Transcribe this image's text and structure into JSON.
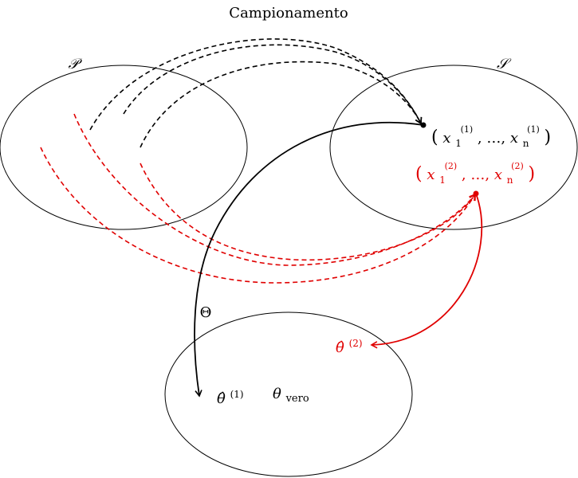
{
  "title": "Campionamento",
  "sets": {
    "population_label": "𝒫",
    "sample_space_label": "𝒮",
    "parameter_space_label": "Θ"
  },
  "samples": [
    {
      "id": "sample-1",
      "color": "#000000",
      "open_paren": "(",
      "first_var": "x",
      "first_sub": "1",
      "sup": "(1)",
      "ellipsis": ", …, ",
      "last_var": "x",
      "last_sub": "n",
      "close_paren": ")"
    },
    {
      "id": "sample-2",
      "color": "#e00000",
      "open_paren": "(",
      "first_var": "x",
      "first_sub": "1",
      "sup": "(2)",
      "ellipsis": ", …, ",
      "last_var": "x",
      "last_sub": "n",
      "close_paren": ")"
    }
  ],
  "estimates": {
    "theta_hat_1": {
      "base": "θ̂",
      "sup": "(1)",
      "color": "#000000"
    },
    "theta_hat_2": {
      "base": "θ̂",
      "sup": "(2)",
      "color": "#e00000"
    },
    "theta_true": {
      "base": "θ",
      "sub": "vero",
      "color": "#000000"
    }
  },
  "colors": {
    "sample1": "#000000",
    "sample2": "#e00000"
  }
}
